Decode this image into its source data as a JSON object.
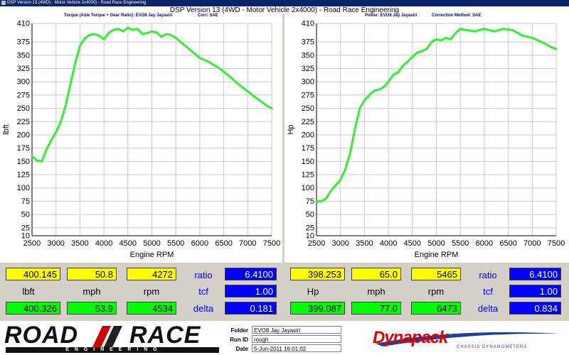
{
  "window": {
    "title": "DSP Version 13 (4WD) - Motor Vehicle 2x4000) - Road Race Engineering"
  },
  "app_title": "DSP Version 13 (4WD - Motor Vehicle 2x4000) - Road Race Engineering",
  "left_chart": {
    "header_title": "Torque (Axle Torque + Gear Ratio): EVO8 Jay Jayasiri",
    "header_corr": "Corr: SAE"
  },
  "right_chart": {
    "header_title": "Power: EVO8 Jay Jayasiri",
    "header_corr": "Correction Method: SAE"
  },
  "chart_data": [
    {
      "type": "line",
      "xlabel": "Engine RPM",
      "ylabel": "lbft",
      "xlim": [
        2500,
        7500
      ],
      "ylim": [
        10,
        410
      ],
      "xticks": [
        2500,
        3000,
        3500,
        4000,
        4500,
        5000,
        5500,
        6000,
        6500,
        7000,
        7500
      ],
      "yticks": [
        10,
        25,
        50,
        75,
        100,
        125,
        150,
        175,
        200,
        225,
        250,
        275,
        300,
        325,
        350,
        375,
        410
      ],
      "grid": true,
      "series": [
        {
          "color": "#33ee33",
          "x": [
            2500,
            2600,
            2700,
            2800,
            2900,
            3000,
            3100,
            3200,
            3300,
            3400,
            3500,
            3600,
            3700,
            3800,
            3900,
            4000,
            4100,
            4200,
            4300,
            4400,
            4500,
            4600,
            4700,
            4800,
            4900,
            5000,
            5100,
            5200,
            5300,
            5400,
            5500,
            5600,
            5800,
            6000,
            6200,
            6400,
            6600,
            6800,
            7000,
            7200,
            7400,
            7500
          ],
          "y": [
            160,
            152,
            150,
            172,
            190,
            205,
            225,
            255,
            295,
            335,
            368,
            382,
            388,
            390,
            387,
            380,
            392,
            398,
            400,
            395,
            402,
            398,
            400,
            390,
            392,
            395,
            393,
            385,
            390,
            388,
            383,
            375,
            360,
            345,
            337,
            326,
            312,
            296,
            282,
            268,
            255,
            250
          ]
        }
      ]
    },
    {
      "type": "line",
      "xlabel": "Engine RPM",
      "ylabel": "Hp",
      "xlim": [
        2500,
        7500
      ],
      "ylim": [
        10,
        410
      ],
      "xticks": [
        2500,
        3000,
        3500,
        4000,
        4500,
        5000,
        5500,
        6000,
        6500,
        7000,
        7500
      ],
      "yticks": [
        10,
        25,
        50,
        75,
        100,
        125,
        150,
        175,
        200,
        225,
        250,
        275,
        300,
        325,
        350,
        375,
        410
      ],
      "grid": true,
      "series": [
        {
          "color": "#33ee33",
          "x": [
            2500,
            2600,
            2700,
            2800,
            2900,
            3000,
            3100,
            3200,
            3300,
            3400,
            3500,
            3600,
            3700,
            3800,
            3900,
            4000,
            4100,
            4200,
            4300,
            4400,
            4500,
            4600,
            4700,
            4800,
            4900,
            5000,
            5100,
            5200,
            5300,
            5400,
            5500,
            5600,
            5800,
            6000,
            6200,
            6400,
            6600,
            6800,
            7000,
            7200,
            7400,
            7500
          ],
          "y": [
            75,
            75,
            80,
            95,
            105,
            115,
            135,
            165,
            210,
            250,
            265,
            275,
            283,
            285,
            290,
            300,
            313,
            318,
            330,
            338,
            347,
            355,
            358,
            362,
            375,
            380,
            378,
            383,
            380,
            392,
            400,
            398,
            395,
            400,
            395,
            400,
            397,
            387,
            383,
            375,
            365,
            362
          ]
        }
      ]
    }
  ],
  "left_readout": {
    "row1": [
      "400.145",
      "50.8",
      "4272"
    ],
    "labels": [
      "lbft",
      "mph",
      "rpm"
    ],
    "row3": [
      "400.326",
      "53.9",
      "4534"
    ],
    "side_labels": [
      "ratio",
      "tcf",
      "delta"
    ],
    "side_values": [
      "6.4100",
      "1.00",
      "0.181"
    ]
  },
  "right_readout": {
    "row1": [
      "398.253",
      "65.0",
      "5465"
    ],
    "labels": [
      "Hp",
      "mph",
      "rpm"
    ],
    "row3": [
      "399.087",
      "77.0",
      "6473"
    ],
    "side_labels": [
      "ratio",
      "tcf",
      "delta"
    ],
    "side_values": [
      "6.4100",
      "1.00",
      "0.834"
    ]
  },
  "footer": {
    "logo_road": "ROAD",
    "logo_race": "RACE",
    "logo_sub": "E N G I N E E R I N G",
    "folder_label": "Folder",
    "folder_value": "EVO8 Jay Jayasiri",
    "runid_label": "Run ID",
    "runid_value": "rough",
    "date_label": "Date",
    "date_value": "5-Jun-2011 16:01:02",
    "brand": "Dynapack",
    "brand_sub": "CHASSIS DYNAMOMETERS"
  }
}
